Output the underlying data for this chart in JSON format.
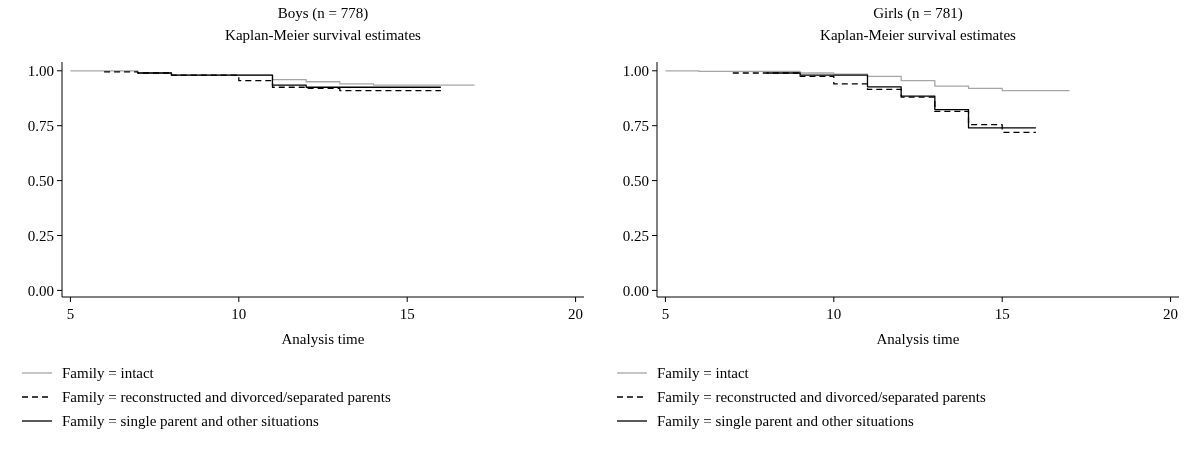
{
  "chart_data": [
    {
      "type": "step",
      "title": "Boys (n = 778)",
      "subtitle": "Kaplan-Meier survival estimates",
      "xlabel": "Analysis time",
      "xlim": [
        4.75,
        20.25
      ],
      "xticks": [
        5,
        10,
        15,
        20
      ],
      "ylim": [
        -0.03,
        1.04
      ],
      "yticks": [
        {
          "value": 0,
          "label": "0.00"
        },
        {
          "value": 0.25,
          "label": "0.25"
        },
        {
          "value": 0.5,
          "label": "0.50"
        },
        {
          "value": 0.75,
          "label": "0.75"
        },
        {
          "value": 1,
          "label": "1.00"
        }
      ],
      "grid": false,
      "legend": "bottom",
      "series": [
        {
          "name": "Family = intact",
          "color": "#a6a6a6",
          "line_style": "solid",
          "x": [
            5,
            7,
            8,
            11,
            12,
            13,
            14,
            17
          ],
          "values": [
            1.0,
            0.99,
            0.98,
            0.96,
            0.95,
            0.94,
            0.935,
            0.935
          ]
        },
        {
          "name": "Family = reconstructed and divorced/separated parents",
          "color": "#000000",
          "line_style": "dashed",
          "x": [
            6,
            7,
            8,
            10,
            11,
            12,
            13,
            16
          ],
          "values": [
            0.995,
            0.99,
            0.98,
            0.955,
            0.925,
            0.92,
            0.91,
            0.91
          ]
        },
        {
          "name": "Family = single parent and other situations",
          "color": "#000000",
          "line_style": "solid",
          "x": [
            7,
            8,
            11,
            12,
            16
          ],
          "values": [
            0.99,
            0.98,
            0.935,
            0.925,
            0.925
          ]
        }
      ]
    },
    {
      "type": "step",
      "title": "Girls (n = 781)",
      "subtitle": "Kaplan-Meier survival estimates",
      "xlabel": "Analysis time",
      "xlim": [
        4.75,
        20.25
      ],
      "xticks": [
        5,
        10,
        15,
        20
      ],
      "ylim": [
        -0.03,
        1.04
      ],
      "yticks": [
        {
          "value": 0,
          "label": "0.00"
        },
        {
          "value": 0.25,
          "label": "0.25"
        },
        {
          "value": 0.5,
          "label": "0.50"
        },
        {
          "value": 0.75,
          "label": "0.75"
        },
        {
          "value": 1,
          "label": "1.00"
        }
      ],
      "grid": false,
      "legend": "bottom",
      "series": [
        {
          "name": "Family = intact",
          "color": "#a6a6a6",
          "line_style": "solid",
          "x": [
            5,
            6,
            9,
            10,
            11,
            12,
            13,
            14,
            15,
            17
          ],
          "values": [
            1.0,
            0.997,
            0.99,
            0.985,
            0.975,
            0.955,
            0.93,
            0.92,
            0.91,
            0.91
          ]
        },
        {
          "name": "Family = reconstructed and divorced/separated parents",
          "color": "#000000",
          "line_style": "dashed",
          "x": [
            7,
            9,
            10,
            11,
            12,
            13,
            14,
            15,
            16
          ],
          "values": [
            0.99,
            0.975,
            0.94,
            0.915,
            0.88,
            0.815,
            0.755,
            0.72,
            0.72
          ]
        },
        {
          "name": "Family = single parent and other situations",
          "color": "#000000",
          "line_style": "solid",
          "x": [
            8,
            9,
            11,
            12,
            13,
            14,
            16
          ],
          "values": [
            0.99,
            0.98,
            0.927,
            0.885,
            0.823,
            0.74,
            0.74
          ]
        }
      ]
    }
  ]
}
